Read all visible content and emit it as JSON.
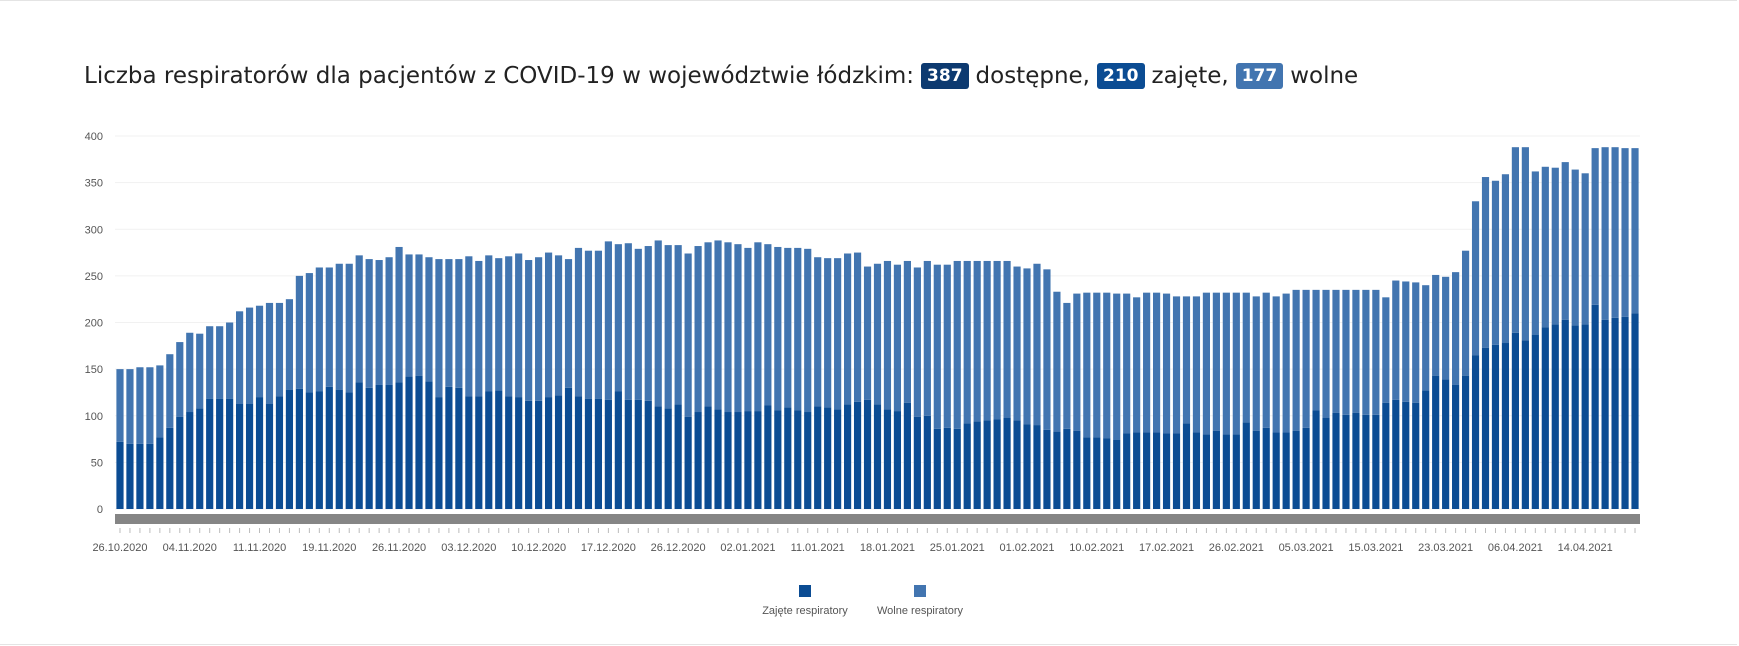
{
  "title": {
    "prefix": "Liczba respiratorów dla pacjentów z COVID-19 w województwie łódzkim:",
    "available_value": "387",
    "available_label": "dostępne,",
    "occupied_value": "210",
    "occupied_label": "zajęte,",
    "free_value": "177",
    "free_label": "wolne"
  },
  "colors": {
    "occupied": "#0b4c93",
    "free": "#4275b0",
    "badge_available": "#0d3a70",
    "badge_occupied": "#0b4c93",
    "badge_free": "#4275b0",
    "scrollbar": "#858585",
    "axis_text": "#555555"
  },
  "chart_data": {
    "type": "bar",
    "stacked": true,
    "ylim": [
      0,
      400
    ],
    "yticks": [
      0,
      50,
      100,
      150,
      200,
      250,
      300,
      350,
      400
    ],
    "x_tick_labels": [
      "26.10.2020",
      "04.11.2020",
      "11.11.2020",
      "19.11.2020",
      "26.11.2020",
      "03.12.2020",
      "10.12.2020",
      "17.12.2020",
      "26.12.2020",
      "02.01.2021",
      "11.01.2021",
      "18.01.2021",
      "25.01.2021",
      "01.02.2021",
      "10.02.2021",
      "17.02.2021",
      "26.02.2021",
      "05.03.2021",
      "15.03.2021",
      "23.03.2021",
      "06.04.2021",
      "14.04.2021"
    ],
    "x_tick_indices": [
      0,
      7,
      14,
      21,
      28,
      35,
      42,
      49,
      56,
      63,
      70,
      77,
      84,
      91,
      98,
      105,
      112,
      119,
      126,
      133,
      140,
      147
    ],
    "legend_position": "bottom",
    "series": [
      {
        "name": "Zajęte respiratory",
        "values": [
          72,
          70,
          70,
          70,
          77,
          87,
          99,
          104,
          108,
          118,
          118,
          118,
          113,
          113,
          120,
          113,
          121,
          128,
          129,
          125,
          126,
          131,
          128,
          125,
          136,
          130,
          133,
          133,
          136,
          142,
          143,
          137,
          120,
          131,
          130,
          121,
          121,
          126,
          127,
          121,
          120,
          116,
          116,
          120,
          122,
          130,
          121,
          118,
          118,
          117,
          126,
          117,
          117,
          116,
          110,
          108,
          112,
          99,
          104,
          110,
          107,
          104,
          104,
          105,
          105,
          111,
          106,
          109,
          106,
          104,
          110,
          109,
          107,
          112,
          115,
          117,
          112,
          107,
          105,
          114,
          99,
          100,
          86,
          87,
          86,
          92,
          94,
          95,
          96,
          98,
          95,
          91,
          90,
          85,
          83,
          86,
          84,
          77,
          77,
          76,
          74,
          81,
          82,
          82,
          82,
          81,
          81,
          92,
          82,
          80,
          84,
          80,
          80,
          93,
          84,
          87,
          82,
          82,
          84,
          87,
          106,
          98,
          103,
          101,
          103,
          101,
          101,
          114,
          117,
          115,
          114,
          127,
          143,
          139,
          133,
          143,
          165,
          173,
          176,
          178,
          189,
          181,
          187,
          195,
          198,
          203,
          197,
          198,
          219,
          203,
          205,
          206,
          210
        ]
      },
      {
        "name": "Wolne respiratory",
        "values": [
          78,
          80,
          82,
          82,
          77,
          79,
          80,
          85,
          80,
          78,
          78,
          82,
          99,
          103,
          98,
          108,
          100,
          97,
          121,
          128,
          133,
          128,
          135,
          138,
          136,
          138,
          134,
          137,
          145,
          131,
          130,
          133,
          148,
          137,
          138,
          150,
          145,
          146,
          142,
          150,
          154,
          151,
          154,
          155,
          150,
          138,
          159,
          159,
          159,
          170,
          158,
          168,
          162,
          166,
          178,
          175,
          171,
          175,
          178,
          176,
          181,
          182,
          180,
          175,
          181,
          173,
          175,
          171,
          174,
          175,
          160,
          160,
          162,
          162,
          160,
          143,
          151,
          159,
          157,
          152,
          160,
          166,
          176,
          175,
          180,
          174,
          172,
          171,
          170,
          168,
          165,
          167,
          173,
          172,
          150,
          135,
          147,
          155,
          155,
          156,
          157,
          150,
          145,
          150,
          150,
          150,
          147,
          136,
          146,
          152,
          148,
          152,
          152,
          139,
          144,
          145,
          146,
          149,
          151,
          148,
          129,
          137,
          132,
          134,
          132,
          134,
          134,
          113,
          128,
          129,
          129,
          113,
          108,
          110,
          121,
          134,
          165,
          183,
          176,
          181,
          199,
          207,
          175,
          172,
          168,
          169,
          167,
          162,
          168,
          185,
          183,
          181,
          177
        ]
      }
    ]
  },
  "legend": {
    "occupied_label": "Zajęte respiratory",
    "free_label": "Wolne respiratory"
  }
}
